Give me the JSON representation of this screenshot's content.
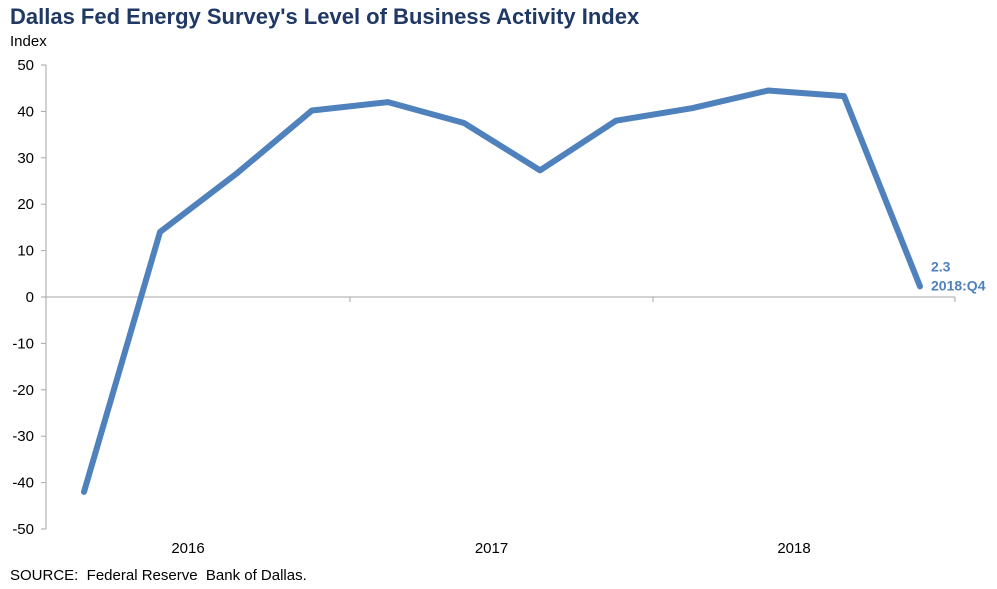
{
  "header": {
    "title": "Dallas Fed Energy Survey's Level of Business Activity Index",
    "ylabel": "Index"
  },
  "footer": {
    "source": "SOURCE:  Federal Reserve  Bank of Dallas."
  },
  "colors": {
    "line": "#4f81bd",
    "annotation": "#4f81bd",
    "title": "#1f3864",
    "axis": "#a6a6a6"
  },
  "chart_data": {
    "type": "line",
    "title": "Dallas Fed Energy Survey's Level of Business Activity Index",
    "xlabel": "",
    "ylabel": "Index",
    "ylim": [
      -50,
      50
    ],
    "yticks": [
      50,
      40,
      30,
      20,
      10,
      0,
      -10,
      -20,
      -30,
      -40,
      -50
    ],
    "x": [
      "2016:Q1",
      "2016:Q2",
      "2016:Q3",
      "2016:Q4",
      "2017:Q1",
      "2017:Q2",
      "2017:Q3",
      "2017:Q4",
      "2018:Q1",
      "2018:Q2",
      "2018:Q3",
      "2018:Q4"
    ],
    "year_labels": [
      "2016",
      "2017",
      "2018"
    ],
    "series": [
      {
        "values": [
          -42,
          14,
          26.5,
          40.2,
          42,
          37.5,
          27.3,
          38,
          40.7,
          44.5,
          43.3,
          2.3
        ]
      }
    ],
    "annotation": {
      "value": "2.3",
      "period": "2018:Q4"
    },
    "grid": false,
    "legend": "none"
  }
}
